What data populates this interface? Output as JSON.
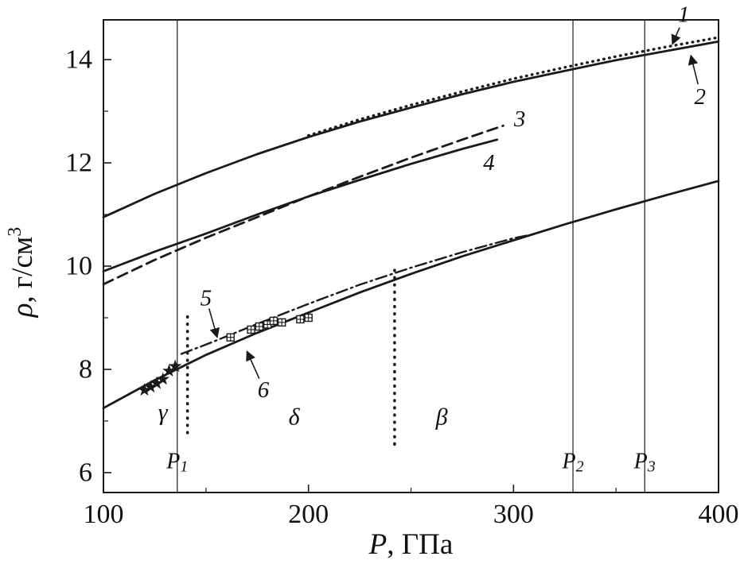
{
  "figure": {
    "background": "#ffffff",
    "ink_color": "#1a1a1a"
  },
  "chart_data": {
    "type": "line",
    "title": "",
    "xlabel_main": "P",
    "xlabel_rest": ", ГПа",
    "ylabel_main": "ρ",
    "ylabel_rest": ", г/см",
    "ylabel_sup": "3",
    "xlim": [
      100,
      400
    ],
    "ylim": [
      5.615,
      14.77
    ],
    "x_ticks": [
      100,
      200,
      300,
      400
    ],
    "x_minor_ticks": [
      150,
      250,
      350
    ],
    "y_ticks": [
      6,
      8,
      10,
      12,
      14
    ],
    "y_minor_ticks": [
      7,
      9,
      11,
      13
    ],
    "grid": false,
    "legend": "none",
    "series": [
      {
        "name": "curve-1",
        "label": "1",
        "style": "solid",
        "x": [
          100,
          125,
          150,
          175,
          200,
          225,
          250,
          275,
          300,
          325,
          350,
          375,
          400
        ],
        "y": [
          10.95,
          11.4,
          11.8,
          12.17,
          12.5,
          12.8,
          13.07,
          13.33,
          13.57,
          13.78,
          13.99,
          14.17,
          14.35
        ]
      },
      {
        "name": "curve-2",
        "label": "2",
        "style": "dotted",
        "x": [
          200,
          225,
          250,
          275,
          300,
          325,
          350,
          375,
          400
        ],
        "y": [
          12.53,
          12.84,
          13.12,
          13.38,
          13.63,
          13.85,
          14.06,
          14.25,
          14.43
        ]
      },
      {
        "name": "curve-3",
        "label": "3",
        "style": "dashed",
        "x": [
          100,
          125,
          150,
          175,
          200,
          225,
          250,
          275,
          295
        ],
        "y": [
          9.65,
          10.12,
          10.55,
          10.95,
          11.35,
          11.73,
          12.1,
          12.45,
          12.72
        ]
      },
      {
        "name": "curve-4",
        "label": "4",
        "style": "solid",
        "x": [
          100,
          125,
          150,
          175,
          200,
          225,
          250,
          275,
          292
        ],
        "y": [
          9.9,
          10.28,
          10.63,
          11.0,
          11.35,
          11.67,
          11.98,
          12.27,
          12.45
        ]
      },
      {
        "name": "curve-5",
        "label": "5",
        "style": "dashdot",
        "x": [
          138,
          150,
          175,
          200,
          225,
          250,
          275,
          300,
          310
        ],
        "y": [
          8.3,
          8.48,
          8.88,
          9.27,
          9.64,
          9.97,
          10.27,
          10.54,
          10.62
        ]
      },
      {
        "name": "curve-6",
        "label": "6",
        "style": "solid",
        "x": [
          100,
          125,
          150,
          175,
          200,
          225,
          250,
          275,
          300,
          325,
          350,
          375,
          400
        ],
        "y": [
          7.25,
          7.79,
          8.28,
          8.71,
          9.1,
          9.49,
          9.85,
          10.19,
          10.5,
          10.81,
          11.1,
          11.38,
          11.65
        ]
      }
    ],
    "markers": [
      {
        "name": "gamma-phase-stars",
        "shape": "star",
        "points": [
          [
            120,
            7.6
          ],
          [
            123,
            7.66
          ],
          [
            126,
            7.73
          ],
          [
            129,
            7.81
          ],
          [
            132,
            7.97
          ],
          [
            135,
            8.06
          ]
        ]
      },
      {
        "name": "delta-phase-squares",
        "shape": "square-cross",
        "points": [
          [
            162,
            8.62
          ],
          [
            172,
            8.77
          ],
          [
            176,
            8.83
          ],
          [
            180,
            8.87
          ],
          [
            183,
            8.94
          ],
          [
            187,
            8.91
          ],
          [
            196,
            8.97
          ],
          [
            200,
            9.0
          ]
        ]
      }
    ],
    "vlines": [
      {
        "name": "phase-line-P1",
        "x": 136,
        "label_main": "P",
        "label_sub": "1",
        "label_y": 6.22
      },
      {
        "name": "phase-line-P2",
        "x": 329,
        "label_main": "P",
        "label_sub": "2",
        "label_y": 6.22
      },
      {
        "name": "phase-line-P3",
        "x": 364,
        "label_main": "P",
        "label_sub": "3",
        "label_y": 6.22
      }
    ],
    "dotted_vlines": [
      {
        "name": "boundary-dotted-1",
        "x": 141,
        "y0": 6.72,
        "y1": 9.02
      },
      {
        "name": "boundary-dotted-2",
        "x": 242,
        "y0": 6.55,
        "y1": 9.92
      }
    ],
    "phase_labels": [
      {
        "text": "γ",
        "x": 129,
        "y": 7.17
      },
      {
        "text": "δ",
        "x": 193,
        "y": 7.08
      },
      {
        "text": "β",
        "x": 265,
        "y": 7.08
      }
    ],
    "curve_labels": [
      {
        "text": "1",
        "x": 383,
        "y": 14.87,
        "arrow": {
          "from": [
            381,
            14.62
          ],
          "to": [
            377.5,
            14.3
          ]
        }
      },
      {
        "text": "2",
        "x": 391,
        "y": 13.28,
        "arrow": {
          "from": [
            390,
            13.52
          ],
          "to": [
            386.5,
            14.08
          ]
        }
      },
      {
        "text": "3",
        "x": 303,
        "y": 12.85,
        "arrow": null
      },
      {
        "text": "4",
        "x": 288,
        "y": 12.0,
        "arrow": null
      },
      {
        "text": "5",
        "x": 150,
        "y": 9.38,
        "arrow": {
          "from": [
            151.5,
            9.18
          ],
          "to": [
            155.5,
            8.62
          ]
        }
      },
      {
        "text": "6",
        "x": 178,
        "y": 7.6,
        "arrow": {
          "from": [
            176,
            7.82
          ],
          "to": [
            170,
            8.35
          ]
        }
      }
    ]
  }
}
